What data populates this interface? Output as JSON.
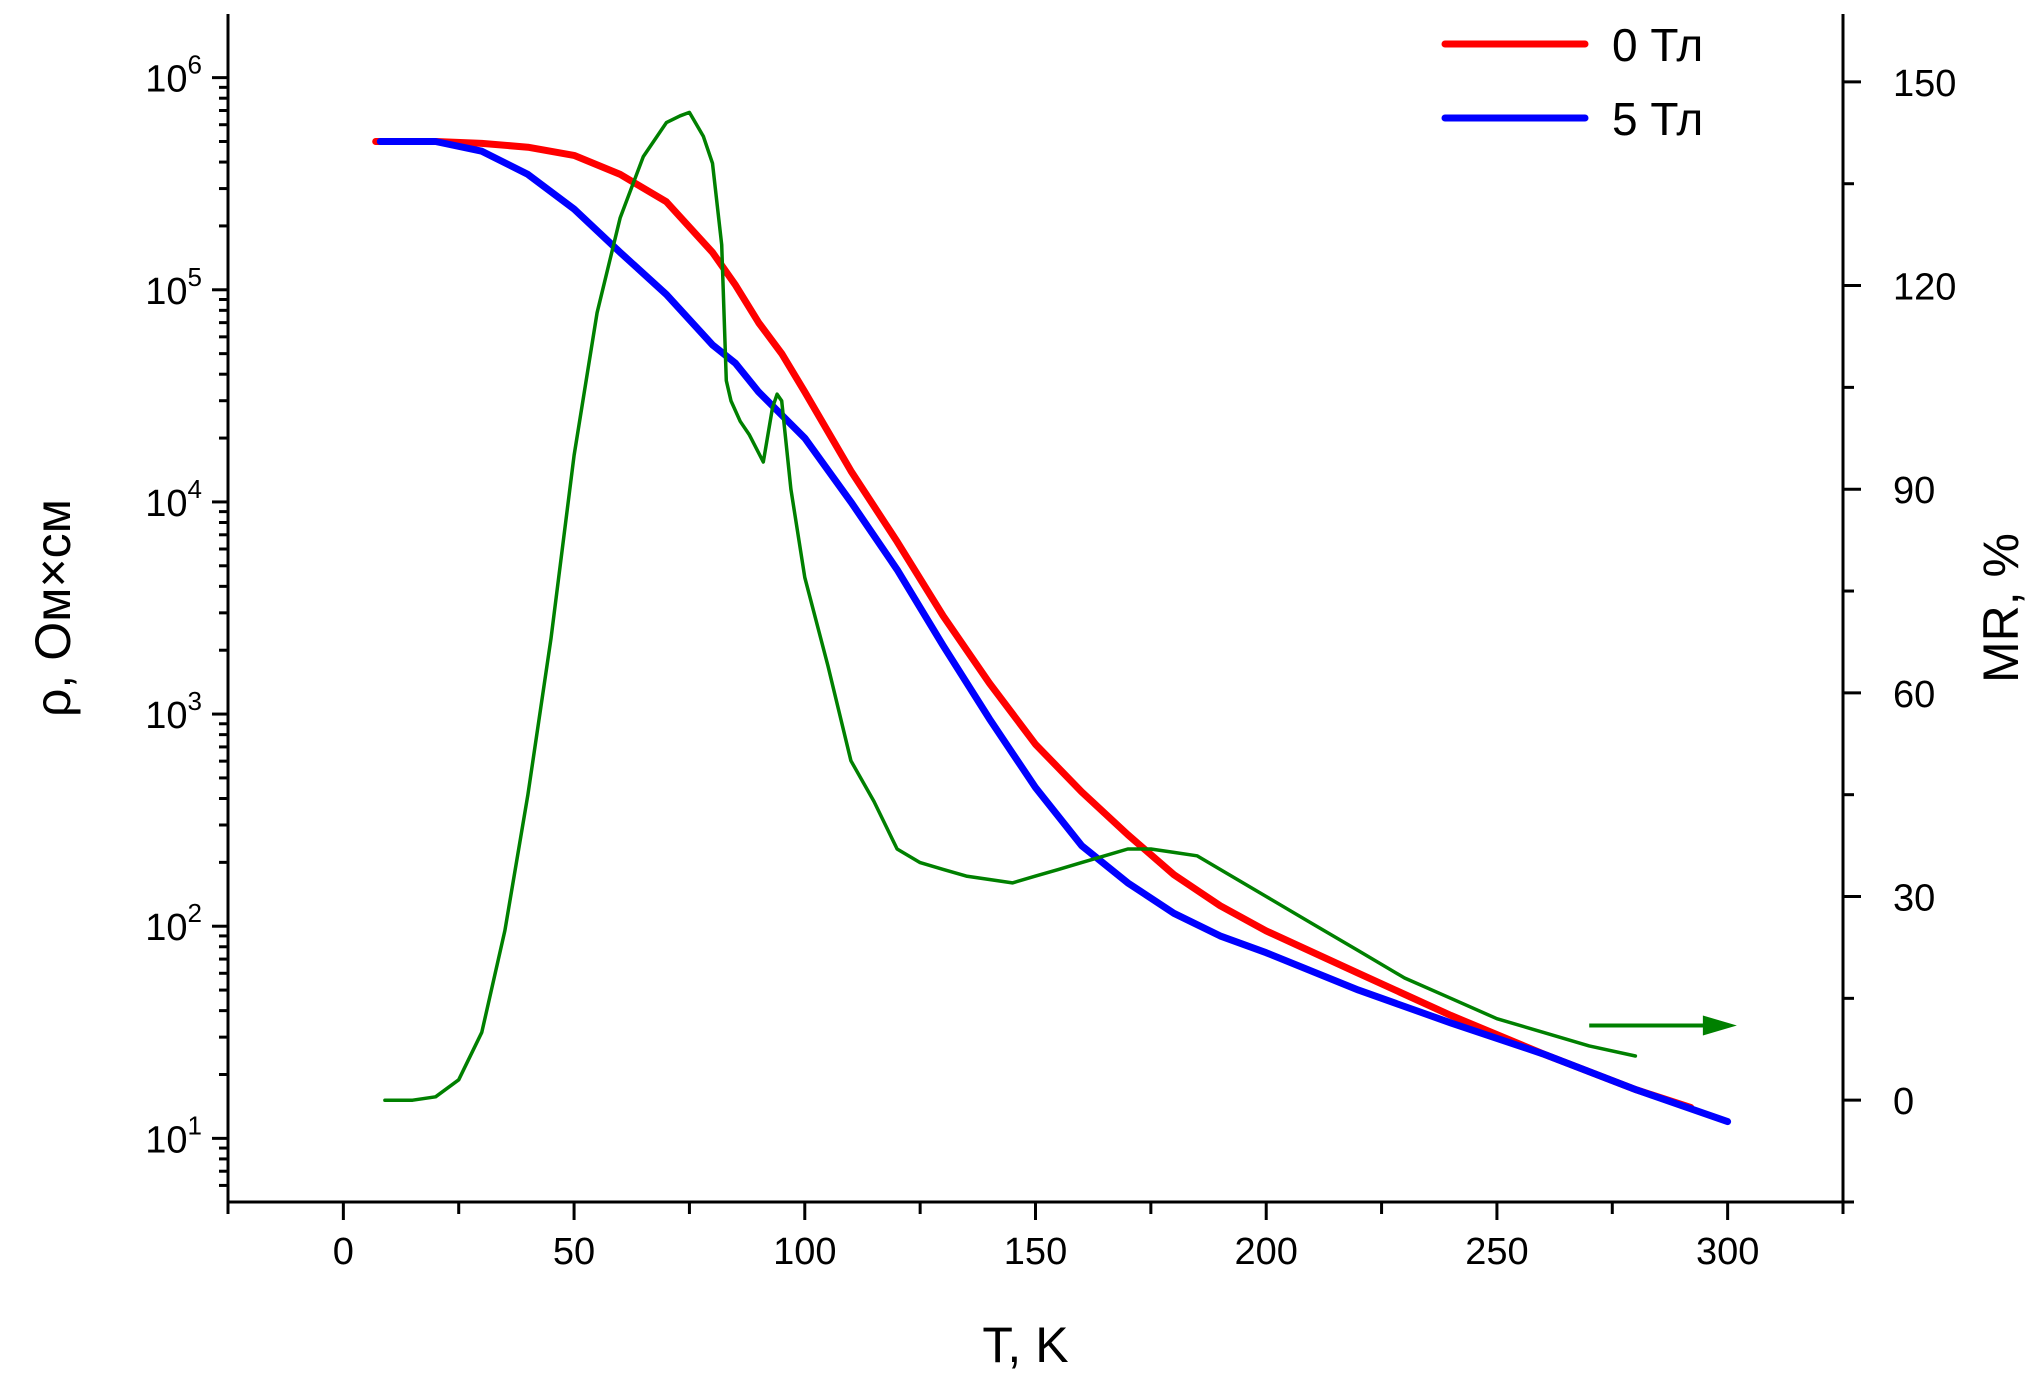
{
  "chart_data": {
    "type": "line",
    "xlabel": "T, K",
    "ylabel_left": "ρ, Ом×см",
    "ylabel_right": "MR, %",
    "xlim": [
      -25,
      325
    ],
    "ylim_left_log10": [
      0.7,
      6.3
    ],
    "ylim_right": [
      -15,
      160
    ],
    "y_left_scale": "log",
    "x_ticks": [
      0,
      50,
      100,
      150,
      200,
      250,
      300
    ],
    "y_left_ticks": [
      {
        "base": "10",
        "exp": "1",
        "value": 10
      },
      {
        "base": "10",
        "exp": "2",
        "value": 100
      },
      {
        "base": "10",
        "exp": "3",
        "value": 1000
      },
      {
        "base": "10",
        "exp": "4",
        "value": 10000
      },
      {
        "base": "10",
        "exp": "5",
        "value": 100000
      },
      {
        "base": "10",
        "exp": "6",
        "value": 1000000
      }
    ],
    "y_right_ticks": [
      0,
      30,
      60,
      90,
      120,
      150
    ],
    "grid": false,
    "legend_position": "top-right",
    "colors": {
      "zero_field": "#ff0000",
      "five_tesla": "#0000ff",
      "mr": "#008000"
    },
    "series": [
      {
        "name": "0 Тл",
        "axis": "left",
        "color": "#ff0000",
        "x": [
          7,
          20,
          30,
          40,
          50,
          60,
          70,
          80,
          85,
          90,
          95,
          100,
          110,
          120,
          130,
          140,
          150,
          160,
          170,
          180,
          190,
          200,
          220,
          240,
          260,
          280,
          292
        ],
        "y": [
          500000,
          500000,
          490000,
          470000,
          430000,
          350000,
          260000,
          150000,
          105000,
          70000,
          50000,
          33000,
          14000,
          6500,
          2900,
          1400,
          720,
          430,
          270,
          175,
          125,
          95,
          60,
          38,
          25,
          17,
          14
        ]
      },
      {
        "name": "5 Тл",
        "axis": "left",
        "color": "#0000ff",
        "x": [
          8,
          20,
          30,
          40,
          50,
          60,
          70,
          80,
          85,
          90,
          100,
          110,
          120,
          130,
          140,
          150,
          160,
          170,
          180,
          190,
          200,
          220,
          240,
          260,
          280,
          300
        ],
        "y": [
          500000,
          500000,
          450000,
          350000,
          240000,
          150000,
          95000,
          55000,
          45000,
          33000,
          20000,
          10000,
          4800,
          2100,
          950,
          450,
          240,
          160,
          115,
          90,
          75,
          50,
          35,
          25,
          17,
          12
        ]
      },
      {
        "name": "",
        "axis": "right",
        "color": "#008000",
        "x": [
          9,
          15,
          20,
          25,
          30,
          35,
          40,
          45,
          50,
          55,
          60,
          65,
          70,
          73,
          75,
          78,
          80,
          82,
          83,
          84,
          86,
          88,
          91,
          93,
          94,
          95,
          97,
          100,
          105,
          110,
          115,
          120,
          125,
          130,
          135,
          140,
          145,
          150,
          155,
          160,
          165,
          170,
          175,
          180,
          185,
          190,
          200,
          210,
          220,
          230,
          240,
          250,
          260,
          270,
          280
        ],
        "y": [
          0,
          0,
          0.5,
          3,
          10,
          25,
          45,
          68,
          95,
          116,
          130,
          139,
          144,
          145,
          145.5,
          142,
          138,
          126,
          106,
          103,
          100,
          98,
          94,
          102,
          104,
          103,
          90,
          77,
          64,
          50,
          44,
          37,
          35,
          34,
          33,
          32.5,
          32,
          33,
          34,
          35,
          36,
          37,
          37,
          36.5,
          36,
          34,
          30,
          26,
          22,
          18,
          15,
          12,
          10,
          8,
          6.5
        ]
      }
    ],
    "annotations": [
      {
        "type": "arrow",
        "x_from": 270,
        "x_to": 302,
        "y_right": 11,
        "color": "#008000"
      }
    ]
  }
}
